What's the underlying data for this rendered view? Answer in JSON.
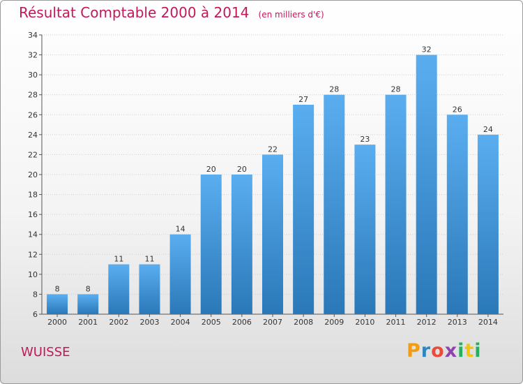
{
  "title": "Résultat Comptable 2000 à 2014",
  "unit": "(en milliers d'€)",
  "town": "WUISSE",
  "logo": {
    "letters": [
      "P",
      "r",
      "o",
      "x",
      "i",
      "t",
      "i"
    ],
    "colors": [
      "#f39c12",
      "#2e86c1",
      "#e74c3c",
      "#8e44ad",
      "#27ae60",
      "#f1c40f",
      "#27ae60"
    ]
  },
  "colors": {
    "bar_light": "#5aaef0",
    "bar_dark": "#2a78b8",
    "title": "#c2185b"
  },
  "chart_data": {
    "type": "bar",
    "title": "Résultat Comptable 2000 à 2014",
    "categories": [
      "2000",
      "2001",
      "2002",
      "2003",
      "2004",
      "2005",
      "2006",
      "2007",
      "2008",
      "2009",
      "2010",
      "2011",
      "2012",
      "2013",
      "2014"
    ],
    "values": [
      8,
      8,
      11,
      11,
      14,
      20,
      20,
      22,
      27,
      28,
      23,
      28,
      32,
      26,
      24
    ],
    "ylim": [
      6,
      34
    ],
    "yticks": [
      6,
      8,
      10,
      12,
      14,
      16,
      18,
      20,
      22,
      24,
      26,
      28,
      30,
      32,
      34
    ],
    "grid": true,
    "data_labels": true
  }
}
